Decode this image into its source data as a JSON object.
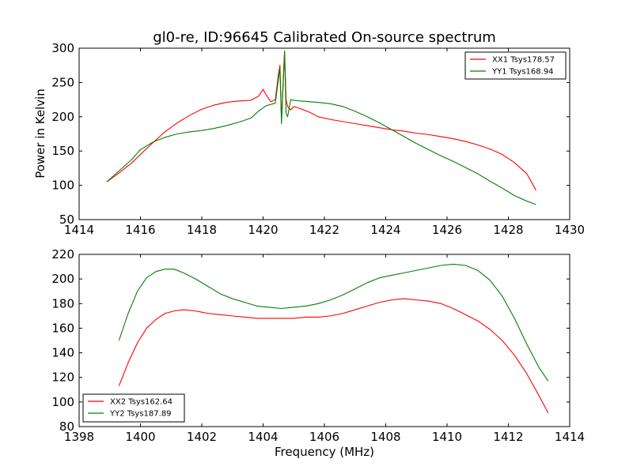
{
  "chart_data": [
    {
      "type": "line",
      "title": "gl0-re, ID:96645 Calibrated On-source spectrum",
      "xlabel": "",
      "ylabel": "Power in Kelvin",
      "xlim": [
        1414,
        1430
      ],
      "ylim": [
        50,
        300
      ],
      "xticks": [
        1414,
        1416,
        1418,
        1420,
        1422,
        1424,
        1426,
        1428,
        1430
      ],
      "yticks": [
        50,
        100,
        150,
        200,
        250,
        300
      ],
      "legend_position": "top-right",
      "series": [
        {
          "name": "XX1 Tsys178.57",
          "color": "#ff0000",
          "x": [
            1414.9,
            1415.3,
            1415.7,
            1416.0,
            1416.4,
            1416.8,
            1417.2,
            1417.6,
            1418.0,
            1418.4,
            1418.8,
            1419.2,
            1419.6,
            1419.85,
            1420.0,
            1420.1,
            1420.25,
            1420.4,
            1420.5,
            1420.55,
            1420.6,
            1420.7,
            1420.75,
            1420.8,
            1420.9,
            1421.0,
            1421.2,
            1421.5,
            1421.8,
            1422.2,
            1422.6,
            1423.0,
            1423.4,
            1423.8,
            1424.2,
            1424.6,
            1425.0,
            1425.4,
            1425.8,
            1426.2,
            1426.6,
            1427.0,
            1427.4,
            1427.8,
            1428.2,
            1428.6,
            1428.9
          ],
          "y": [
            105,
            118,
            132,
            145,
            162,
            178,
            191,
            202,
            211,
            217,
            221,
            223,
            224,
            230,
            240,
            232,
            222,
            225,
            262,
            275,
            195,
            295,
            225,
            215,
            210,
            215,
            212,
            207,
            200,
            196,
            193,
            190,
            187,
            184,
            181,
            179,
            176,
            174,
            171,
            168,
            164,
            159,
            153,
            145,
            133,
            117,
            93
          ]
        },
        {
          "name": "YY1 Tsys168.94",
          "color": "#008000",
          "x": [
            1414.9,
            1415.3,
            1415.7,
            1416.0,
            1416.4,
            1416.8,
            1417.2,
            1417.6,
            1418.0,
            1418.4,
            1418.8,
            1419.2,
            1419.6,
            1419.85,
            1420.0,
            1420.1,
            1420.25,
            1420.4,
            1420.5,
            1420.55,
            1420.6,
            1420.7,
            1420.75,
            1420.8,
            1420.9,
            1421.0,
            1421.2,
            1421.5,
            1421.8,
            1422.2,
            1422.6,
            1423.0,
            1423.4,
            1423.8,
            1424.2,
            1424.6,
            1425.0,
            1425.4,
            1425.8,
            1426.2,
            1426.6,
            1427.0,
            1427.4,
            1427.8,
            1428.2,
            1428.6,
            1428.9
          ],
          "y": [
            105,
            121,
            137,
            152,
            163,
            170,
            175,
            178,
            180,
            183,
            187,
            192,
            198,
            208,
            213,
            216,
            218,
            220,
            255,
            270,
            190,
            296,
            205,
            200,
            225,
            224,
            223,
            222,
            221,
            219,
            215,
            208,
            200,
            191,
            181,
            171,
            161,
            152,
            143,
            135,
            126,
            117,
            106,
            96,
            85,
            77,
            72
          ]
        }
      ]
    },
    {
      "type": "line",
      "title": "",
      "xlabel": "Frequency (MHz)",
      "ylabel": "",
      "xlim": [
        1398,
        1414
      ],
      "ylim": [
        80,
        220
      ],
      "xticks": [
        1398,
        1400,
        1402,
        1404,
        1406,
        1408,
        1410,
        1412,
        1414
      ],
      "yticks": [
        80,
        100,
        120,
        140,
        160,
        180,
        200,
        220
      ],
      "legend_position": "bottom-left",
      "series": [
        {
          "name": "XX2 Tsys162.64",
          "color": "#ff0000",
          "x": [
            1399.3,
            1399.6,
            1399.9,
            1400.2,
            1400.5,
            1400.8,
            1401.1,
            1401.4,
            1401.8,
            1402.2,
            1402.6,
            1403.0,
            1403.4,
            1403.8,
            1404.2,
            1404.6,
            1405.0,
            1405.4,
            1405.8,
            1406.2,
            1406.6,
            1407.0,
            1407.4,
            1407.8,
            1408.2,
            1408.6,
            1409.0,
            1409.4,
            1409.8,
            1410.2,
            1410.6,
            1411.0,
            1411.4,
            1411.8,
            1412.2,
            1412.6,
            1413.0,
            1413.3
          ],
          "y": [
            113,
            132,
            148,
            160,
            167,
            172,
            174,
            175,
            174,
            172,
            171,
            170,
            169,
            168,
            168,
            168,
            168,
            169,
            169,
            170,
            172,
            175,
            178,
            181,
            183,
            184,
            183,
            182,
            180,
            176,
            171,
            166,
            159,
            150,
            138,
            123,
            105,
            91
          ]
        },
        {
          "name": "YY2 Tsys187.89",
          "color": "#008000",
          "x": [
            1399.3,
            1399.6,
            1399.9,
            1400.2,
            1400.5,
            1400.8,
            1401.1,
            1401.4,
            1401.8,
            1402.2,
            1402.6,
            1403.0,
            1403.4,
            1403.8,
            1404.2,
            1404.6,
            1405.0,
            1405.4,
            1405.8,
            1406.2,
            1406.6,
            1407.0,
            1407.4,
            1407.8,
            1408.2,
            1408.6,
            1409.0,
            1409.4,
            1409.8,
            1410.2,
            1410.6,
            1411.0,
            1411.4,
            1411.8,
            1412.2,
            1412.6,
            1413.0,
            1413.3
          ],
          "y": [
            150,
            172,
            190,
            201,
            206,
            208,
            208,
            205,
            200,
            194,
            188,
            184,
            181,
            178,
            177,
            176,
            177,
            178,
            180,
            183,
            187,
            192,
            197,
            201,
            203,
            205,
            207,
            209,
            211,
            212,
            211,
            207,
            199,
            186,
            168,
            147,
            128,
            117
          ]
        }
      ]
    }
  ]
}
